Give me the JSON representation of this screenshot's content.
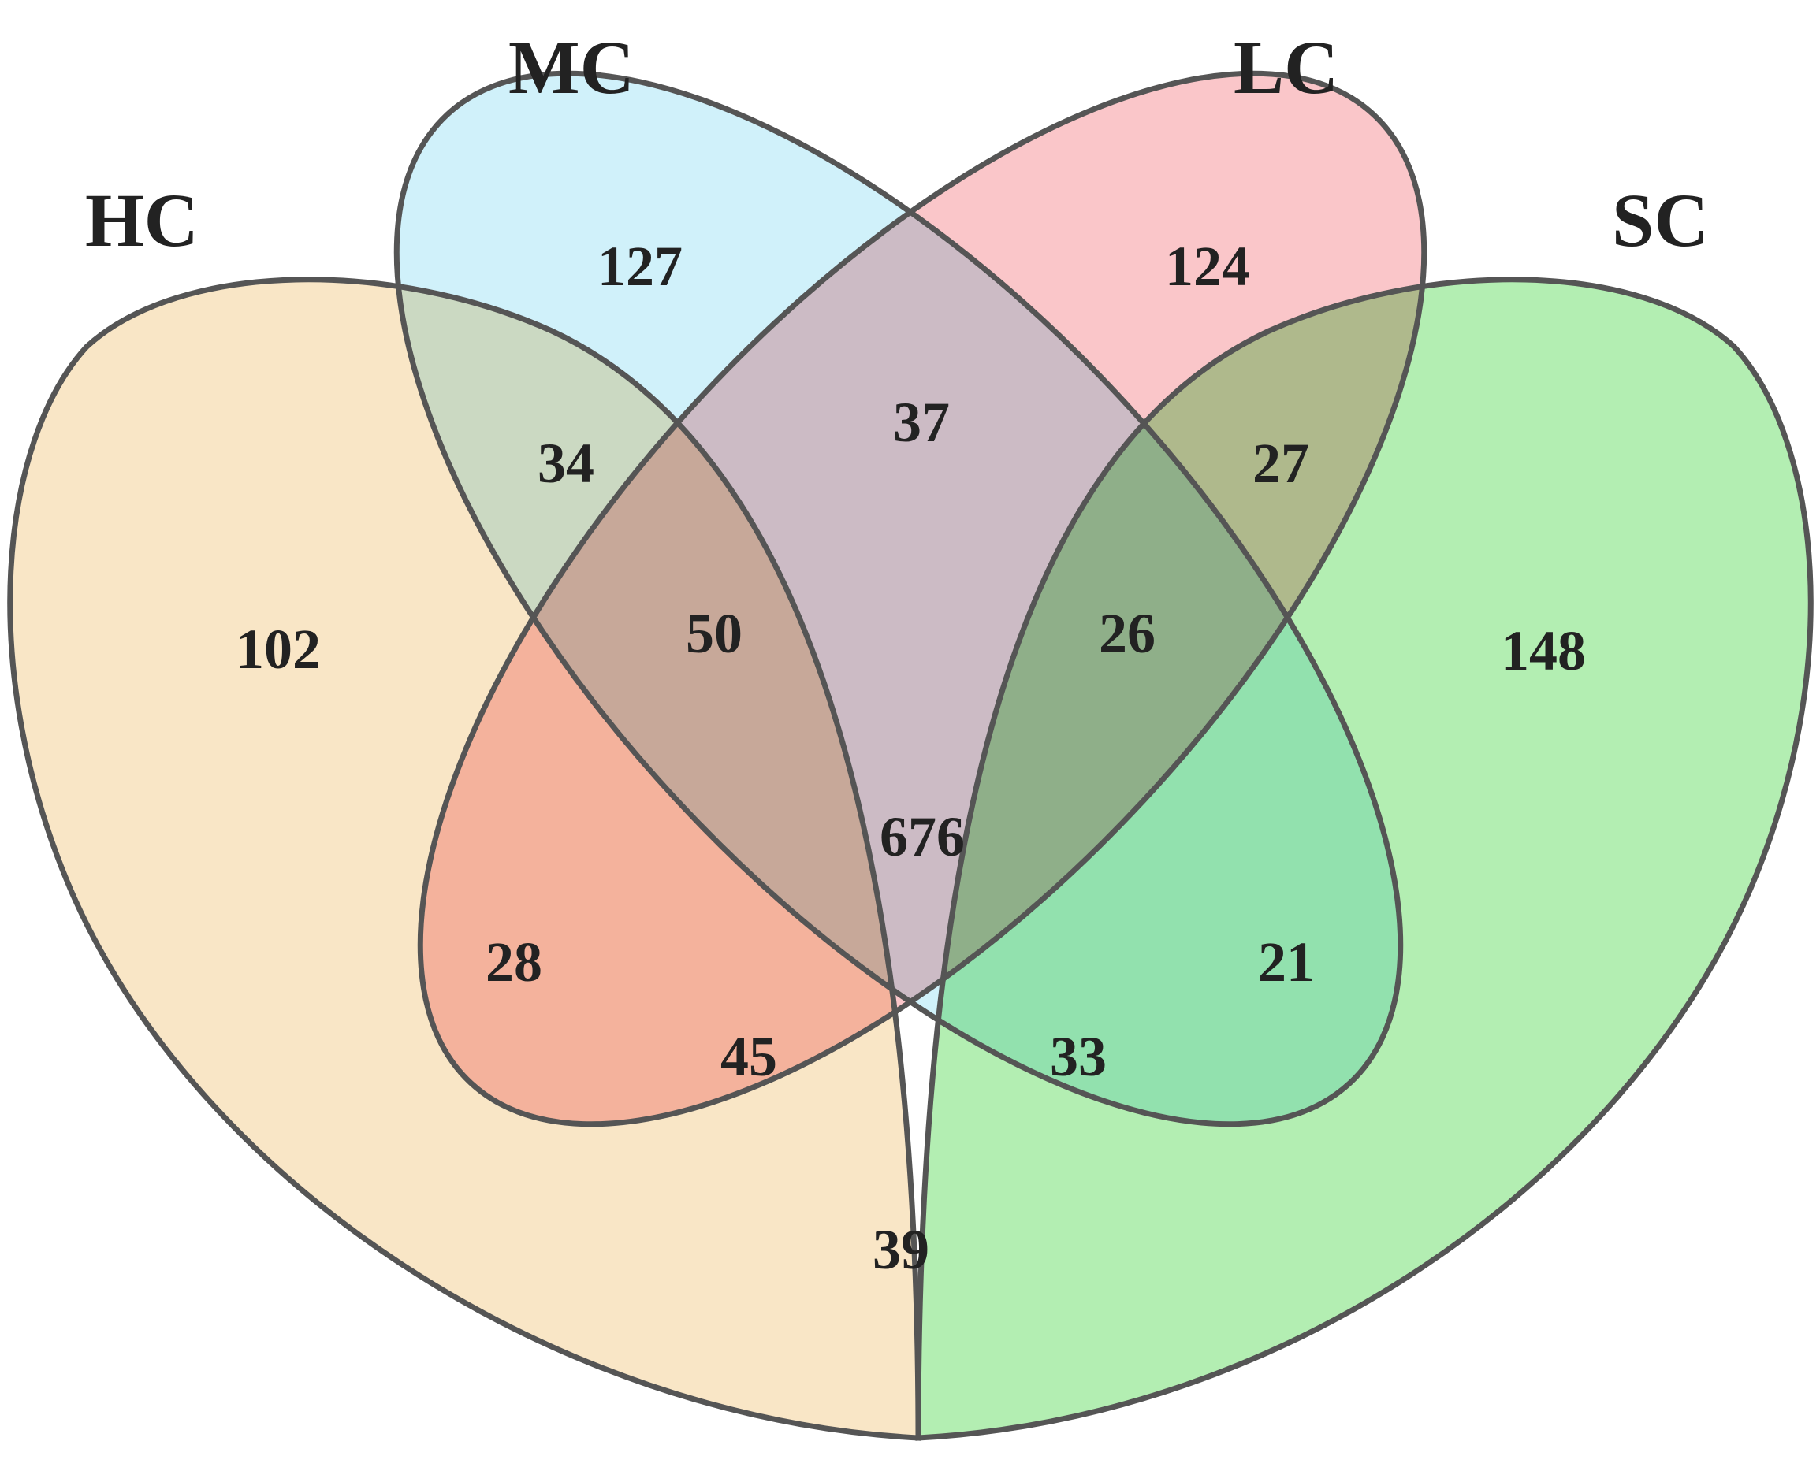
{
  "sets": [
    {
      "id": "HC",
      "label": "HC",
      "color": "#F5D6A0"
    },
    {
      "id": "MC",
      "label": "MC",
      "color": "#B1E8F6"
    },
    {
      "id": "LC",
      "label": "LC",
      "color": "#F7A0A5"
    },
    {
      "id": "SC",
      "label": "SC",
      "color": "#80E37E"
    }
  ],
  "regions": [
    {
      "sets": [
        "HC"
      ],
      "count": "102"
    },
    {
      "sets": [
        "MC"
      ],
      "count": "127"
    },
    {
      "sets": [
        "LC"
      ],
      "count": "124"
    },
    {
      "sets": [
        "SC"
      ],
      "count": "148"
    },
    {
      "sets": [
        "HC",
        "MC"
      ],
      "count": "34"
    },
    {
      "sets": [
        "MC",
        "LC"
      ],
      "count": "37"
    },
    {
      "sets": [
        "LC",
        "SC"
      ],
      "count": "27"
    },
    {
      "sets": [
        "HC",
        "MC",
        "LC"
      ],
      "count": "50"
    },
    {
      "sets": [
        "MC",
        "LC",
        "SC"
      ],
      "count": "26"
    },
    {
      "sets": [
        "HC",
        "MC",
        "LC",
        "SC"
      ],
      "count": "676"
    },
    {
      "sets": [
        "HC",
        "LC"
      ],
      "count": "28"
    },
    {
      "sets": [
        "MC",
        "SC"
      ],
      "count": "21"
    },
    {
      "sets": [
        "HC",
        "LC",
        "SC"
      ],
      "count": "45"
    },
    {
      "sets": [
        "HC",
        "MC",
        "SC"
      ],
      "count": "33"
    },
    {
      "sets": [
        "HC",
        "SC"
      ],
      "count": "39"
    }
  ]
}
